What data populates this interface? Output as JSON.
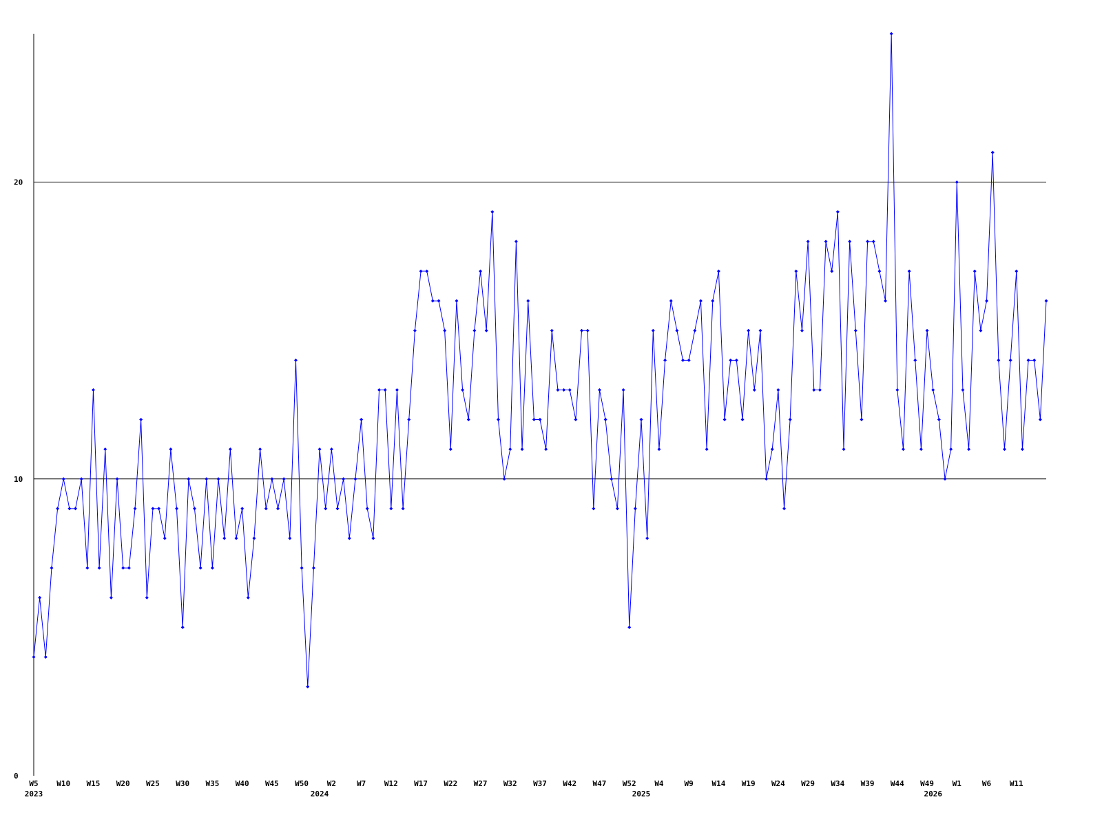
{
  "chart_data": {
    "type": "line",
    "categories": [
      "W5",
      null,
      null,
      null,
      null,
      "W10",
      null,
      null,
      null,
      null,
      "W15",
      null,
      null,
      null,
      null,
      "W20",
      null,
      null,
      null,
      null,
      "W25",
      null,
      null,
      null,
      null,
      "W30",
      null,
      null,
      null,
      null,
      "W35",
      null,
      null,
      null,
      null,
      "W40",
      null,
      null,
      null,
      null,
      "W45",
      null,
      null,
      null,
      null,
      "W50",
      null,
      null,
      null,
      null,
      "W2",
      null,
      null,
      null,
      null,
      "W7",
      null,
      null,
      null,
      null,
      "W12",
      null,
      null,
      null,
      null,
      "W17",
      null,
      null,
      null,
      null,
      "W22",
      null,
      null,
      null,
      null,
      "W27",
      null,
      null,
      null,
      null,
      "W32",
      null,
      null,
      null,
      null,
      "W37",
      null,
      null,
      null,
      null,
      "W42",
      null,
      null,
      null,
      null,
      "W47",
      null,
      null,
      null,
      null,
      "W52",
      null,
      null,
      null,
      null,
      "W4",
      null,
      null,
      null,
      null,
      "W9",
      null,
      null,
      null,
      null,
      "W14",
      null,
      null,
      null,
      null,
      "W19",
      null,
      null,
      null,
      null,
      "W24",
      null,
      null,
      null,
      null,
      "W29",
      null,
      null,
      null,
      null,
      "W34",
      null,
      null,
      null,
      null,
      "W39",
      null,
      null,
      null,
      null,
      "W44",
      null,
      null,
      null,
      null,
      "W49",
      null,
      null,
      null,
      null,
      "W1",
      null,
      null,
      null,
      null,
      "W6",
      null,
      null,
      null,
      null,
      "W11",
      null,
      null,
      null,
      null,
      null
    ],
    "year_categories": [
      "2023",
      null,
      null,
      null,
      null,
      null,
      null,
      null,
      null,
      null,
      null,
      null,
      null,
      null,
      null,
      null,
      null,
      null,
      null,
      null,
      null,
      null,
      null,
      null,
      null,
      null,
      null,
      null,
      null,
      null,
      null,
      null,
      null,
      null,
      null,
      null,
      null,
      null,
      null,
      null,
      null,
      null,
      null,
      null,
      null,
      null,
      null,
      null,
      "2024",
      null,
      null,
      null,
      null,
      null,
      null,
      null,
      null,
      null,
      null,
      null,
      null,
      null,
      null,
      null,
      null,
      null,
      null,
      null,
      null,
      null,
      null,
      null,
      null,
      null,
      null,
      null,
      null,
      null,
      null,
      null,
      null,
      null,
      null,
      null,
      null,
      null,
      null,
      null,
      null,
      null,
      null,
      null,
      null,
      null,
      null,
      null,
      null,
      null,
      null,
      null,
      null,
      null,
      "2025",
      null,
      null,
      null,
      null,
      null,
      null,
      null,
      null,
      null,
      null,
      null,
      null,
      null,
      null,
      null,
      null,
      null,
      null,
      null,
      null,
      null,
      null,
      null,
      null,
      null,
      null,
      null,
      null,
      null,
      null,
      null,
      null,
      null,
      null,
      null,
      null,
      null,
      null,
      null,
      null,
      null,
      null,
      null,
      null,
      null,
      null,
      null,
      null,
      "2026",
      null,
      null,
      null,
      null,
      null,
      null,
      null,
      null,
      null,
      null,
      null,
      null,
      null,
      null,
      null
    ],
    "series": [
      {
        "color": "#0000ff",
        "values": [
          4,
          6,
          4,
          7,
          9,
          10,
          9,
          9,
          10,
          7,
          13,
          7,
          11,
          6,
          10,
          7,
          7,
          9,
          12,
          6,
          9,
          9,
          8,
          11,
          9,
          5,
          10,
          9,
          7,
          10,
          7,
          10,
          8,
          11,
          8,
          9,
          6,
          8,
          11,
          9,
          10,
          9,
          10,
          8,
          14,
          7,
          3,
          7,
          11,
          9,
          11,
          9,
          10,
          8,
          10,
          12,
          9,
          8,
          13,
          13,
          9,
          13,
          9,
          12,
          15,
          17,
          17,
          16,
          16,
          15,
          11,
          16,
          13,
          12,
          15,
          17,
          15,
          19,
          12,
          10,
          11,
          18,
          11,
          16,
          12,
          12,
          11,
          15,
          13,
          13,
          13,
          12,
          15,
          15,
          9,
          13,
          12,
          10,
          9,
          13,
          5,
          9,
          12,
          8,
          15,
          11,
          14,
          16,
          15,
          14,
          14,
          15,
          16,
          11,
          16,
          17,
          12,
          14,
          14,
          12,
          15,
          13,
          15,
          10,
          11,
          13,
          9,
          12,
          17,
          15,
          18,
          13,
          13,
          18,
          17,
          19,
          11,
          18,
          15,
          12,
          18,
          18,
          17,
          16,
          25,
          13,
          11,
          17,
          14,
          11,
          15,
          13,
          12,
          10,
          11,
          20,
          13,
          11,
          17,
          15,
          16,
          21,
          14,
          11,
          14,
          17,
          11,
          14,
          14,
          12,
          16
        ]
      }
    ],
    "ylim": [
      0,
      25
    ],
    "yticks": [
      0,
      10,
      20
    ],
    "grid": true
  }
}
